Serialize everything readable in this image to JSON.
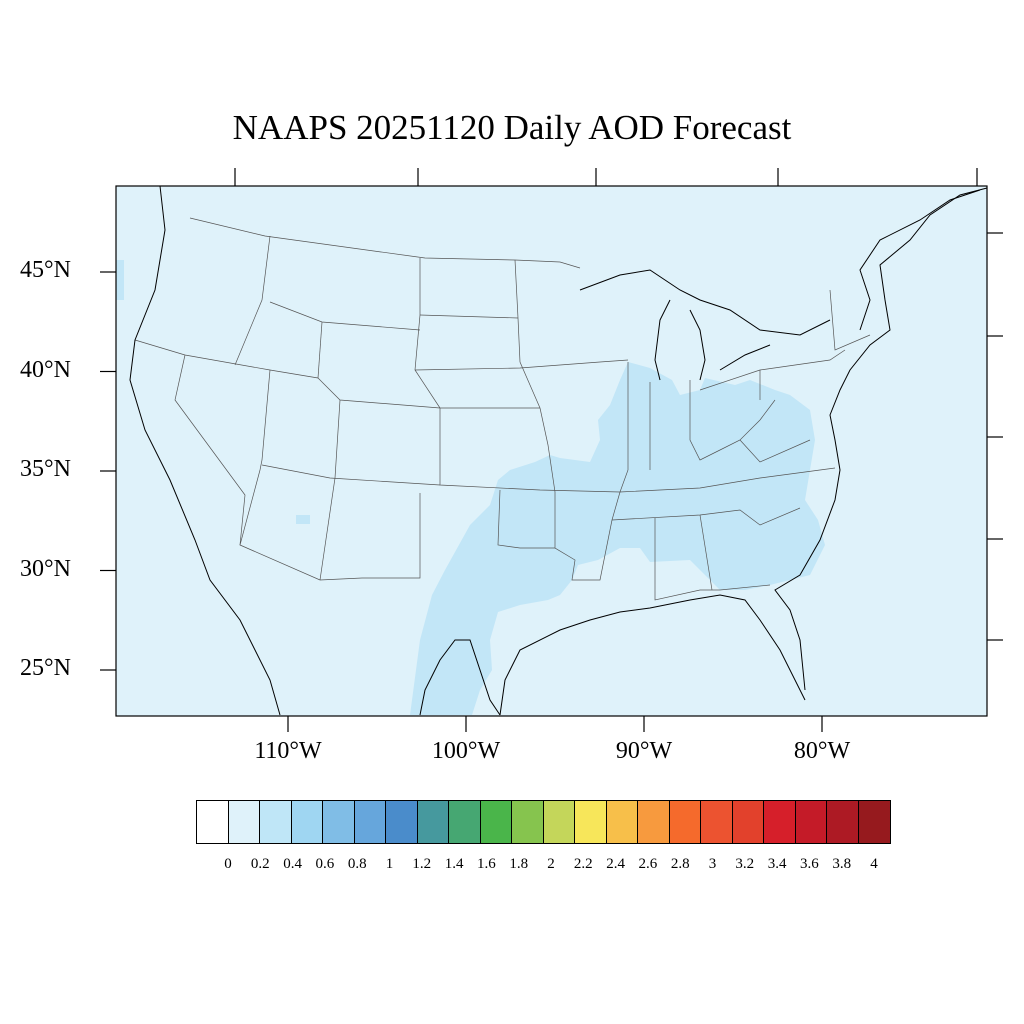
{
  "title": "NAAPS 20251120 Daily AOD Forecast",
  "map": {
    "background_color": "#dff2fa",
    "plume_color": "#c2e6f7",
    "lat_labels": [
      "45°N",
      "40°N",
      "35°N",
      "30°N",
      "25°N"
    ],
    "lat_values": [
      45,
      40,
      35,
      30,
      25
    ],
    "lon_labels": [
      "110°W",
      "100°W",
      "90°W",
      "80°W"
    ],
    "lon_values": [
      -110,
      -100,
      -90,
      -80
    ]
  },
  "colorbar": {
    "colors": [
      "#ffffff",
      "#dff2fa",
      "#bfe6f7",
      "#9fd6f2",
      "#80bde6",
      "#66a6dc",
      "#4a8ccb",
      "#46999e",
      "#46a772",
      "#4ab54a",
      "#86c44e",
      "#c4d65a",
      "#f7e65a",
      "#f7bf4a",
      "#f79a3e",
      "#f56a2c",
      "#ec5330",
      "#e2412c",
      "#d61f2a",
      "#c41b28",
      "#ad1a24",
      "#961a1e"
    ],
    "labels": [
      "0",
      "0.2",
      "0.4",
      "0.6",
      "0.8",
      "1",
      "1.2",
      "1.4",
      "1.6",
      "1.8",
      "2",
      "2.2",
      "2.4",
      "2.6",
      "2.8",
      "3",
      "3.2",
      "3.4",
      "3.6",
      "3.8",
      "4"
    ]
  }
}
